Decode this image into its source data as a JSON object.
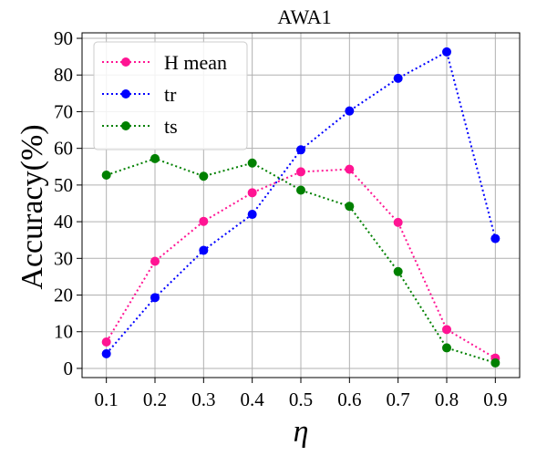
{
  "chart_data": {
    "type": "line",
    "title": "AWA1",
    "xlabel": "η",
    "ylabel": "Accuracy(%)",
    "x": [
      0.1,
      0.2,
      0.3,
      0.4,
      0.5,
      0.6,
      0.7,
      0.8,
      0.9
    ],
    "x_tick_labels": [
      "0.1",
      "0.2",
      "0.3",
      "0.4",
      "0.5",
      "0.6",
      "0.7",
      "0.8",
      "0.9"
    ],
    "y_ticks": [
      0,
      10,
      20,
      30,
      40,
      50,
      60,
      70,
      80,
      90
    ],
    "y_tick_labels": [
      "0",
      "10",
      "20",
      "30",
      "40",
      "50",
      "60",
      "70",
      "80",
      "90"
    ],
    "xlim": [
      0.05,
      0.95
    ],
    "ylim": [
      -2.5,
      91.5
    ],
    "grid": true,
    "legend_position": "top-left",
    "series": [
      {
        "name": "H mean",
        "color": "#ff1493",
        "linestyle": "dotted",
        "marker": "circle",
        "values": [
          7.2,
          29.2,
          40.1,
          47.9,
          53.6,
          54.3,
          39.8,
          10.6,
          2.8
        ]
      },
      {
        "name": "tr",
        "color": "#0000ff",
        "linestyle": "dotted",
        "marker": "circle",
        "values": [
          4.0,
          19.3,
          32.2,
          42.0,
          59.6,
          70.2,
          79.1,
          86.3,
          35.4
        ]
      },
      {
        "name": "ts",
        "color": "#008000",
        "linestyle": "dotted",
        "marker": "circle",
        "values": [
          52.7,
          57.2,
          52.4,
          56.0,
          48.6,
          44.2,
          26.4,
          5.6,
          1.5
        ]
      }
    ]
  }
}
